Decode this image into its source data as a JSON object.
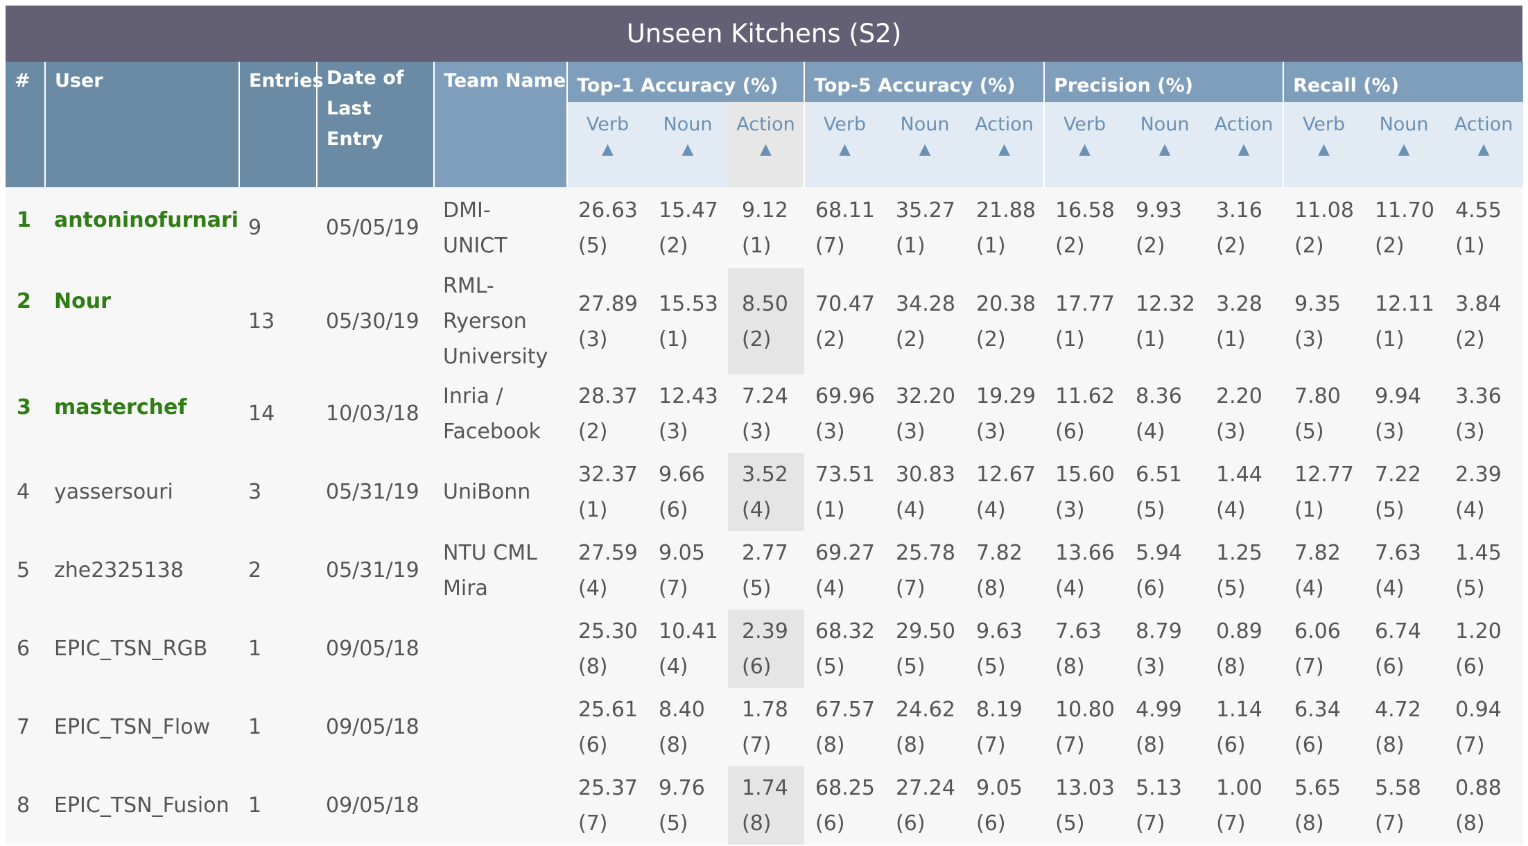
{
  "title": "Unseen Kitchens (S2)",
  "columns": {
    "rank": "#",
    "user": "User",
    "entries": "Entries",
    "date": "Date of Last Entry",
    "team": "Team Name"
  },
  "groups": [
    {
      "label": "Top-1 Accuracy (%)",
      "subs": [
        "Verb",
        "Noun",
        "Action"
      ]
    },
    {
      "label": "Top-5 Accuracy (%)",
      "subs": [
        "Verb",
        "Noun",
        "Action"
      ]
    },
    {
      "label": "Precision (%)",
      "subs": [
        "Verb",
        "Noun",
        "Action"
      ]
    },
    {
      "label": "Recall (%)",
      "subs": [
        "Verb",
        "Noun",
        "Action"
      ]
    }
  ],
  "sort_arrow": "▲",
  "sorted_column_index": 2,
  "colors": {
    "title_bg": "#635f75",
    "header_dark": "#6b8aa3",
    "header_light": "#7f9ebb",
    "subheader_bg": "#e2ebf3",
    "top_user": "#2f7d14",
    "sorted_cell": "#e5e5e5"
  },
  "rows": [
    {
      "rank": "1",
      "user": "antoninofurnari",
      "entries": "9",
      "date": "05/05/19",
      "team": [
        "DMI-",
        "UNICT"
      ],
      "values": [
        [
          "26.63",
          "(5)"
        ],
        [
          "15.47",
          "(2)"
        ],
        [
          "9.12",
          "(1)"
        ],
        [
          "68.11",
          "(7)"
        ],
        [
          "35.27",
          "(1)"
        ],
        [
          "21.88",
          "(1)"
        ],
        [
          "16.58",
          "(2)"
        ],
        [
          "9.93",
          "(2)"
        ],
        [
          "3.16",
          "(2)"
        ],
        [
          "11.08",
          "(2)"
        ],
        [
          "11.70",
          "(2)"
        ],
        [
          "4.55",
          "(1)"
        ]
      ]
    },
    {
      "rank": "2",
      "user": "Nour",
      "entries": "13",
      "date": "05/30/19",
      "team": [
        "RML-",
        "Ryerson",
        "University"
      ],
      "values": [
        [
          "27.89",
          "(3)"
        ],
        [
          "15.53",
          "(1)"
        ],
        [
          "8.50",
          "(2)"
        ],
        [
          "70.47",
          "(2)"
        ],
        [
          "34.28",
          "(2)"
        ],
        [
          "20.38",
          "(2)"
        ],
        [
          "17.77",
          "(1)"
        ],
        [
          "12.32",
          "(1)"
        ],
        [
          "3.28",
          "(1)"
        ],
        [
          "9.35",
          "(3)"
        ],
        [
          "12.11",
          "(1)"
        ],
        [
          "3.84",
          "(2)"
        ]
      ]
    },
    {
      "rank": "3",
      "user": "masterchef",
      "entries": "14",
      "date": "10/03/18",
      "team": [
        "Inria /",
        "Facebook"
      ],
      "values": [
        [
          "28.37",
          "(2)"
        ],
        [
          "12.43",
          "(3)"
        ],
        [
          "7.24",
          "(3)"
        ],
        [
          "69.96",
          "(3)"
        ],
        [
          "32.20",
          "(3)"
        ],
        [
          "19.29",
          "(3)"
        ],
        [
          "11.62",
          "(6)"
        ],
        [
          "8.36",
          "(4)"
        ],
        [
          "2.20",
          "(3)"
        ],
        [
          "7.80",
          "(5)"
        ],
        [
          "9.94",
          "(3)"
        ],
        [
          "3.36",
          "(3)"
        ]
      ]
    },
    {
      "rank": "4",
      "user": "yassersouri",
      "entries": "3",
      "date": "05/31/19",
      "team": [
        "UniBonn"
      ],
      "values": [
        [
          "32.37",
          "(1)"
        ],
        [
          "9.66",
          "(6)"
        ],
        [
          "3.52",
          "(4)"
        ],
        [
          "73.51",
          "(1)"
        ],
        [
          "30.83",
          "(4)"
        ],
        [
          "12.67",
          "(4)"
        ],
        [
          "15.60",
          "(3)"
        ],
        [
          "6.51",
          "(5)"
        ],
        [
          "1.44",
          "(4)"
        ],
        [
          "12.77",
          "(1)"
        ],
        [
          "7.22",
          "(5)"
        ],
        [
          "2.39",
          "(4)"
        ]
      ]
    },
    {
      "rank": "5",
      "user": "zhe2325138",
      "entries": "2",
      "date": "05/31/19",
      "team": [
        "NTU CML",
        "Mira"
      ],
      "values": [
        [
          "27.59",
          "(4)"
        ],
        [
          "9.05",
          "(7)"
        ],
        [
          "2.77",
          "(5)"
        ],
        [
          "69.27",
          "(4)"
        ],
        [
          "25.78",
          "(7)"
        ],
        [
          "7.82",
          "(8)"
        ],
        [
          "13.66",
          "(4)"
        ],
        [
          "5.94",
          "(6)"
        ],
        [
          "1.25",
          "(5)"
        ],
        [
          "7.82",
          "(4)"
        ],
        [
          "7.63",
          "(4)"
        ],
        [
          "1.45",
          "(5)"
        ]
      ]
    },
    {
      "rank": "6",
      "user": "EPIC_TSN_RGB",
      "entries": "1",
      "date": "09/05/18",
      "team": [],
      "values": [
        [
          "25.30",
          "(8)"
        ],
        [
          "10.41",
          "(4)"
        ],
        [
          "2.39",
          "(6)"
        ],
        [
          "68.32",
          "(5)"
        ],
        [
          "29.50",
          "(5)"
        ],
        [
          "9.63",
          "(5)"
        ],
        [
          "7.63",
          "(8)"
        ],
        [
          "8.79",
          "(3)"
        ],
        [
          "0.89",
          "(8)"
        ],
        [
          "6.06",
          "(7)"
        ],
        [
          "6.74",
          "(6)"
        ],
        [
          "1.20",
          "(6)"
        ]
      ]
    },
    {
      "rank": "7",
      "user": "EPIC_TSN_Flow",
      "entries": "1",
      "date": "09/05/18",
      "team": [],
      "values": [
        [
          "25.61",
          "(6)"
        ],
        [
          "8.40",
          "(8)"
        ],
        [
          "1.78",
          "(7)"
        ],
        [
          "67.57",
          "(8)"
        ],
        [
          "24.62",
          "(8)"
        ],
        [
          "8.19",
          "(7)"
        ],
        [
          "10.80",
          "(7)"
        ],
        [
          "4.99",
          "(8)"
        ],
        [
          "1.14",
          "(6)"
        ],
        [
          "6.34",
          "(6)"
        ],
        [
          "4.72",
          "(8)"
        ],
        [
          "0.94",
          "(7)"
        ]
      ]
    },
    {
      "rank": "8",
      "user": "EPIC_TSN_Fusion",
      "entries": "1",
      "date": "09/05/18",
      "team": [],
      "values": [
        [
          "25.37",
          "(7)"
        ],
        [
          "9.76",
          "(5)"
        ],
        [
          "1.74",
          "(8)"
        ],
        [
          "68.25",
          "(6)"
        ],
        [
          "27.24",
          "(6)"
        ],
        [
          "9.05",
          "(6)"
        ],
        [
          "13.03",
          "(5)"
        ],
        [
          "5.13",
          "(7)"
        ],
        [
          "1.00",
          "(7)"
        ],
        [
          "5.65",
          "(8)"
        ],
        [
          "5.58",
          "(7)"
        ],
        [
          "0.88",
          "(8)"
        ]
      ]
    }
  ]
}
